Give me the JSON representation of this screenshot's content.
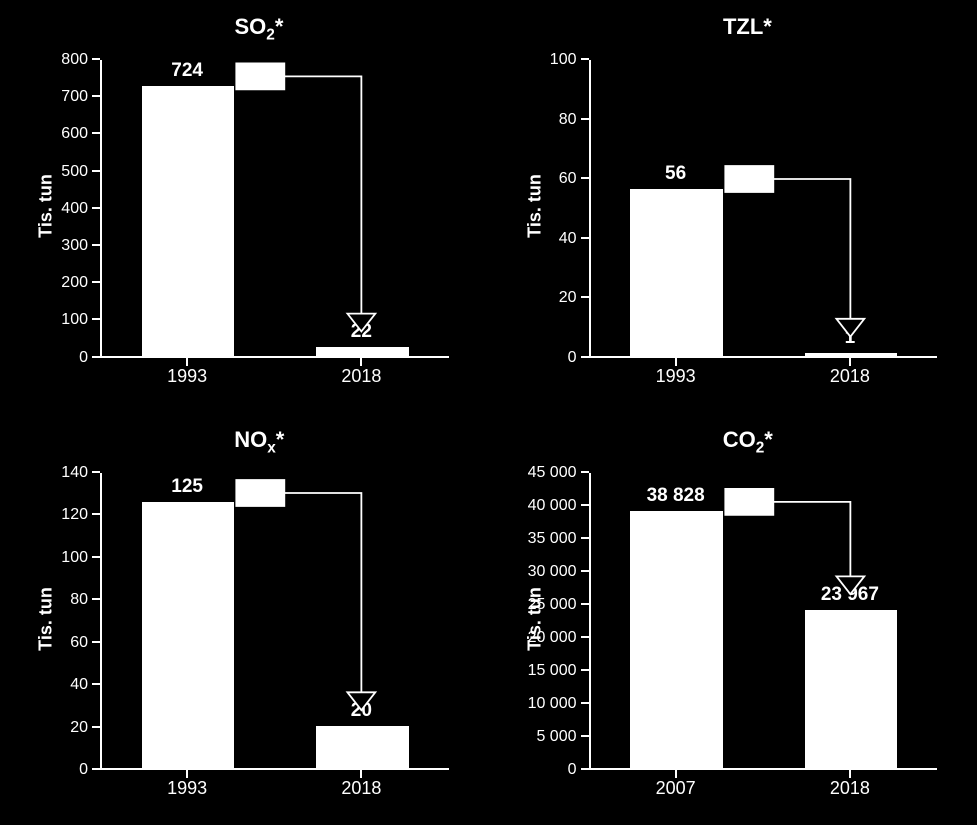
{
  "background_color": "#000000",
  "text_color": "#ffffff",
  "bar_color": "#ffffff",
  "axis_color": "#ffffff",
  "arrow_stroke": "#ffffff",
  "arrow_box_fill": "#ffffff",
  "title_fontsize": 22,
  "label_fontsize": 18,
  "tick_fontsize": 16,
  "value_fontsize": 19,
  "font_family": "Arial",
  "charts": [
    {
      "id": "so2",
      "title_html": "SO<sub>2</sub>*",
      "ylabel": "Tis. tun",
      "categories": [
        "1993",
        "2018"
      ],
      "values": [
        724,
        22
      ],
      "value_labels": [
        "724",
        "22"
      ],
      "ymin": 0,
      "ymax": 800,
      "ytick_step": 100,
      "bar_width_pct": 26
    },
    {
      "id": "tzl",
      "title_html": "TZL*",
      "ylabel": "Tis. tun",
      "categories": [
        "1993",
        "2018"
      ],
      "values": [
        56,
        1
      ],
      "value_labels": [
        "56",
        "1"
      ],
      "ymin": 0,
      "ymax": 100,
      "ytick_step": 20,
      "bar_width_pct": 26
    },
    {
      "id": "nox",
      "title_html": "NO<sub>x</sub>*",
      "ylabel": "Tis. tun",
      "categories": [
        "1993",
        "2018"
      ],
      "values": [
        125,
        20
      ],
      "value_labels": [
        "125",
        "20"
      ],
      "ymin": 0,
      "ymax": 140,
      "ytick_step": 20,
      "bar_width_pct": 26
    },
    {
      "id": "co2",
      "title_html": "CO<sub>2</sub>*",
      "ylabel": "Tis. tun",
      "categories": [
        "2007",
        "2018"
      ],
      "values": [
        38828,
        23967
      ],
      "value_labels": [
        "38 828",
        "23 967"
      ],
      "ymin": 0,
      "ymax": 45000,
      "ytick_step": 5000,
      "bar_width_pct": 26,
      "ytick_format": "space_thousands"
    }
  ]
}
